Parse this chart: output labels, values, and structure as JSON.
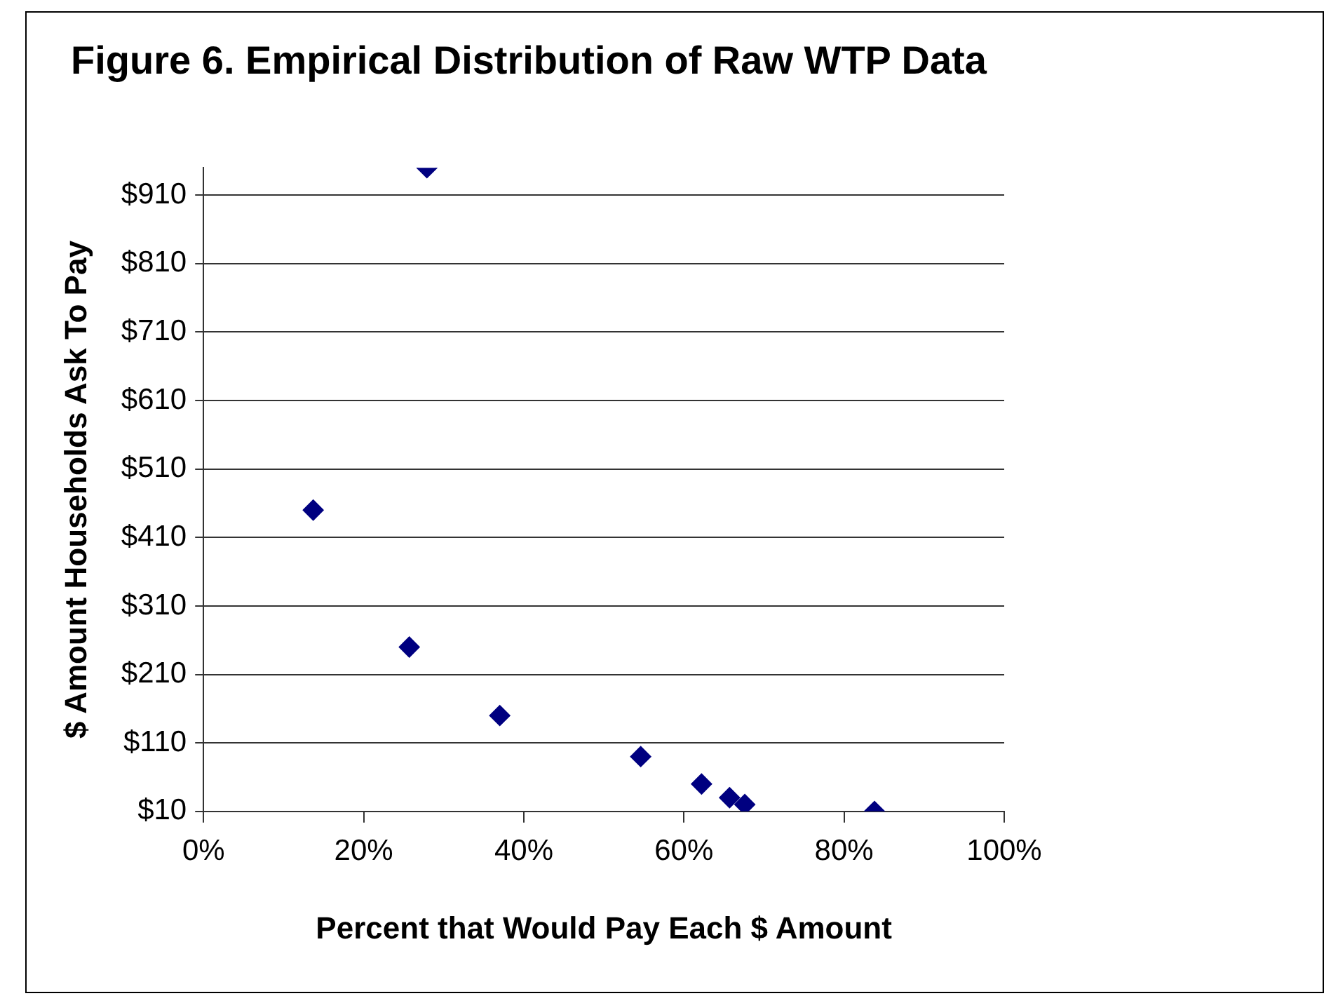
{
  "chart_data": {
    "type": "scatter",
    "title": "Figure 6. Empirical Distribution of Raw WTP Data",
    "xlabel": "Percent that Would Pay Each $ Amount",
    "ylabel": "$ Amount Households Ask To Pay",
    "x": [
      27.9,
      13.7,
      25.7,
      37.0,
      54.6,
      62.2,
      65.7,
      67.6,
      83.8
    ],
    "values": [
      950,
      450,
      250,
      150,
      90,
      50,
      30,
      20,
      10
    ],
    "color": "#000080",
    "marker": "diamond",
    "grid": "y",
    "legend": false,
    "xlim": [
      0,
      100
    ],
    "xticks": [
      {
        "value": 0,
        "label": "0%"
      },
      {
        "value": 20,
        "label": "20%"
      },
      {
        "value": 40,
        "label": "40%"
      },
      {
        "value": 60,
        "label": "60%"
      },
      {
        "value": 80,
        "label": "80%"
      },
      {
        "value": 100,
        "label": "100%"
      }
    ],
    "ylim": [
      10,
      950
    ],
    "yticks": [
      {
        "value": 10,
        "label": "$10"
      },
      {
        "value": 110,
        "label": "$110"
      },
      {
        "value": 210,
        "label": "$210"
      },
      {
        "value": 310,
        "label": "$310"
      },
      {
        "value": 410,
        "label": "$410"
      },
      {
        "value": 510,
        "label": "$510"
      },
      {
        "value": 610,
        "label": "$610"
      },
      {
        "value": 710,
        "label": "$710"
      },
      {
        "value": 810,
        "label": "$810"
      },
      {
        "value": 910,
        "label": "$910"
      }
    ]
  }
}
